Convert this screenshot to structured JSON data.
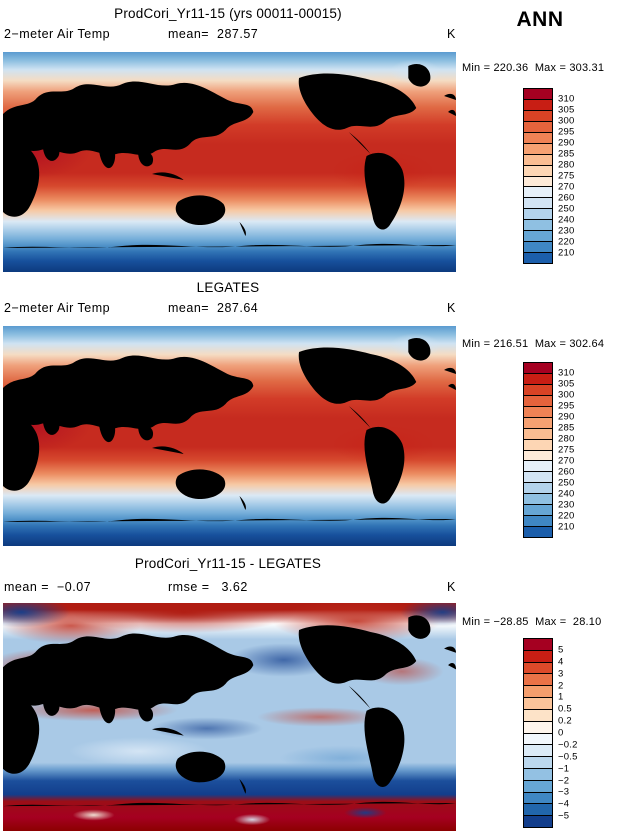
{
  "header": {
    "season_label": "ANN"
  },
  "panels": {
    "model": {
      "title": "ProdCori_Yr11-15 (yrs 00011-00015)",
      "field_label": "2−meter Air Temp",
      "mean_text": "mean=  287.57",
      "units": "K",
      "stats_text": "Min = 220.36  Max = 303.31",
      "colorbar_labels": [
        "310",
        "305",
        "300",
        "295",
        "290",
        "285",
        "280",
        "275",
        "270",
        "260",
        "250",
        "240",
        "230",
        "220",
        "210"
      ]
    },
    "obs": {
      "title": "LEGATES",
      "field_label": "2−meter Air Temp",
      "mean_text": "mean=  287.64",
      "units": "K",
      "stats_text": "Min = 216.51  Max = 302.64",
      "colorbar_labels": [
        "310",
        "305",
        "300",
        "295",
        "290",
        "285",
        "280",
        "275",
        "270",
        "260",
        "250",
        "240",
        "230",
        "220",
        "210"
      ]
    },
    "diff": {
      "title": "ProdCori_Yr11-15 - LEGATES",
      "mean_text": "mean =  −0.07",
      "rmse_text": "rmse =   3.62",
      "units": "K",
      "stats_text": "Min = −28.85  Max =  28.10",
      "colorbar_labels": [
        "5",
        "4",
        "3",
        "2",
        "1",
        "0.5",
        "0.2",
        "0",
        "−0.2",
        "−0.5",
        "−1",
        "−2",
        "−3",
        "−4",
        "−5"
      ]
    }
  },
  "palette": {
    "temp_colors": [
      "#a50021",
      "#c81e14",
      "#d94325",
      "#e5633c",
      "#ef8255",
      "#f6a172",
      "#fabd92",
      "#fdd6b4",
      "#fdead8",
      "#e6f0f9",
      "#d2e4f4",
      "#b3d3ec",
      "#8fc0e2",
      "#66a6d5",
      "#3f87c4",
      "#1b5eab"
    ],
    "diff_colors": [
      "#a50021",
      "#c81e14",
      "#dd4a2a",
      "#ea7247",
      "#f49e6d",
      "#fbc49a",
      "#fde3c8",
      "#fef5ec",
      "#f2f7fc",
      "#dcebf7",
      "#bcd8ee",
      "#93c1e3",
      "#66a6d5",
      "#3f87c4",
      "#2166ac",
      "#123e8c"
    ]
  },
  "chart_data": [
    {
      "type": "heatmap",
      "title": "ProdCori_Yr11-15 (yrs 00011-00015)",
      "variable": "2-meter Air Temp",
      "season": "ANN",
      "units": "K",
      "mean": 287.57,
      "min": 220.36,
      "max": 303.31,
      "contour_levels": [
        210,
        220,
        230,
        240,
        250,
        260,
        270,
        275,
        280,
        285,
        290,
        295,
        300,
        305,
        310
      ],
      "projection": "global latitude-longitude, Pacific-centered",
      "legend_position": "right"
    },
    {
      "type": "heatmap",
      "title": "LEGATES",
      "variable": "2-meter Air Temp",
      "season": "ANN",
      "units": "K",
      "mean": 287.64,
      "min": 216.51,
      "max": 302.64,
      "contour_levels": [
        210,
        220,
        230,
        240,
        250,
        260,
        270,
        275,
        280,
        285,
        290,
        295,
        300,
        305,
        310
      ],
      "projection": "global latitude-longitude, Pacific-centered",
      "legend_position": "right"
    },
    {
      "type": "heatmap",
      "title": "ProdCori_Yr11-15 - LEGATES",
      "variable": "2-meter Air Temp difference",
      "season": "ANN",
      "units": "K",
      "mean": -0.07,
      "rmse": 3.62,
      "min": -28.85,
      "max": 28.1,
      "contour_levels": [
        -5,
        -4,
        -3,
        -2,
        -1,
        -0.5,
        -0.2,
        0,
        0.2,
        0.5,
        1,
        2,
        3,
        4,
        5
      ],
      "projection": "global latitude-longitude, Pacific-centered",
      "legend_position": "right"
    }
  ]
}
